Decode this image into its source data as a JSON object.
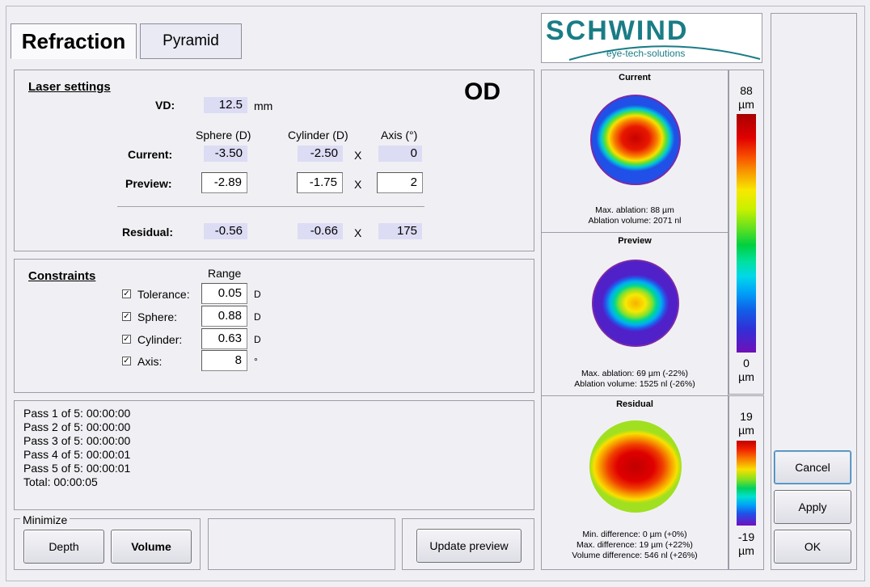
{
  "tabs": [
    {
      "label": "Refraction"
    },
    {
      "label": "Pyramid"
    }
  ],
  "logo": {
    "brand": "SCHWIND",
    "tagline": "eye-tech-solutions"
  },
  "laser": {
    "title": "Laser settings",
    "eye": "OD",
    "vd_label": "VD:",
    "vd_value": "12.5",
    "vd_unit": "mm",
    "headers": {
      "sphere": "Sphere (D)",
      "cylinder": "Cylinder (D)",
      "axis": "Axis (°)"
    },
    "x": "X",
    "current": {
      "label": "Current:",
      "sphere": "-3.50",
      "cylinder": "-2.50",
      "axis": "0"
    },
    "preview": {
      "label": "Preview:",
      "sphere": "-2.89",
      "cylinder": "-1.75",
      "axis": "2"
    },
    "residual": {
      "label": "Residual:",
      "sphere": "-0.56",
      "cylinder": "-0.66",
      "axis": "175"
    }
  },
  "constraints": {
    "title": "Constraints",
    "range_label": "Range",
    "items": [
      {
        "label": "Tolerance:",
        "value": "0.05",
        "unit": "D",
        "checked": true
      },
      {
        "label": "Sphere:",
        "value": "0.88",
        "unit": "D",
        "checked": true
      },
      {
        "label": "Cylinder:",
        "value": "0.63",
        "unit": "D",
        "checked": true
      },
      {
        "label": "Axis:",
        "value": "8",
        "unit": "°",
        "checked": true
      }
    ]
  },
  "passes": [
    "Pass 1 of 5: 00:00:00",
    "Pass 2 of 5: 00:00:00",
    "Pass 3 of 5: 00:00:00",
    "Pass 4 of 5: 00:00:01",
    "Pass 5 of 5: 00:00:01",
    "Total: 00:00:05"
  ],
  "minimize": {
    "label": "Minimize",
    "depth": "Depth",
    "volume": "Volume"
  },
  "update_preview": "Update preview",
  "maps": {
    "current": {
      "title": "Current",
      "line1": "Max. ablation: 88 µm",
      "line2": "Ablation volume: 2071 nl"
    },
    "preview": {
      "title": "Preview",
      "line1": "Max. ablation: 69 µm (-22%)",
      "line2": "Ablation volume: 1525 nl (-26%)"
    },
    "residual": {
      "title": "Residual",
      "line1": "Min. difference: 0 µm (+0%)",
      "line2": "Max. difference: 19 µm (+22%)",
      "line3": "Volume difference: 546 nl (+26%)"
    }
  },
  "scale1": {
    "max": "88",
    "min": "0",
    "unit": "µm"
  },
  "scale2": {
    "max": "19",
    "min": "-19",
    "unit": "µm"
  },
  "buttons": {
    "cancel": "Cancel",
    "apply": "Apply",
    "ok": "OK"
  },
  "colors": {
    "accent": "#1a7c86",
    "readonly_bg": "#dcdcf4",
    "panel_bg": "#f0f0f4"
  }
}
